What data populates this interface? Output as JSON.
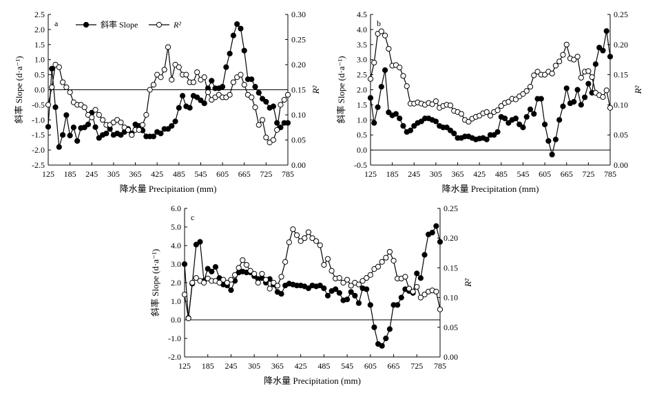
{
  "chart_data": [
    {
      "type": "line",
      "panel": "a",
      "xlabel": "降水量 Precipitation (mm)",
      "ylabel_left": "斜率 Slope (d·a⁻¹)",
      "ylabel_right": "R²",
      "xlim": [
        125,
        785
      ],
      "ylim_left": [
        -2.5,
        2.5
      ],
      "ylim_right": [
        0.0,
        0.3
      ],
      "xticks": [
        "125",
        "185",
        "245",
        "305",
        "365",
        "425",
        "485",
        "545",
        "605",
        "665",
        "725",
        "785"
      ],
      "yticks_left": [
        "-2.5",
        "-2.0",
        "-1.5",
        "-1.0",
        "-0.5",
        "0.0",
        "0.5",
        "1.0",
        "1.5",
        "2.0",
        "2.5"
      ],
      "yticks_right": [
        "0.00",
        "0.05",
        "0.10",
        "0.15",
        "0.20",
        "0.25",
        "0.30"
      ],
      "legend": {
        "placement": "top-left"
      },
      "series": [
        {
          "name": "斜率 Slope",
          "marker": "filled",
          "axis": "left",
          "x": [
            125,
            135,
            145,
            155,
            165,
            175,
            185,
            195,
            205,
            215,
            225,
            235,
            245,
            255,
            265,
            275,
            285,
            295,
            305,
            315,
            325,
            335,
            345,
            355,
            365,
            375,
            385,
            395,
            405,
            415,
            425,
            435,
            445,
            455,
            465,
            475,
            485,
            495,
            505,
            515,
            525,
            535,
            545,
            555,
            565,
            575,
            585,
            595,
            605,
            615,
            625,
            635,
            645,
            655,
            665,
            675,
            685,
            695,
            705,
            715,
            725,
            735,
            745,
            755,
            765,
            775,
            785
          ],
          "values": [
            -1.23,
            0.7,
            -0.58,
            -1.9,
            -1.5,
            -0.84,
            -1.52,
            -1.25,
            -1.7,
            -1.27,
            -1.25,
            -1.15,
            -0.76,
            -1.24,
            -1.6,
            -1.5,
            -1.45,
            -1.3,
            -1.5,
            -1.45,
            -1.5,
            -1.4,
            -1.3,
            -1.45,
            -1.15,
            -1.2,
            -1.35,
            -1.55,
            -1.55,
            -1.55,
            -1.4,
            -1.45,
            -1.3,
            -1.3,
            -1.2,
            -1.05,
            -0.6,
            -0.2,
            -0.55,
            -0.6,
            -0.2,
            -0.25,
            -0.35,
            -0.45,
            0.05,
            0.3,
            0.05,
            0.05,
            0.1,
            0.75,
            1.2,
            1.8,
            2.18,
            2.03,
            1.3,
            0.35,
            0.35,
            0.1,
            -0.1,
            -0.3,
            -0.4,
            -0.6,
            -0.55,
            -1.1,
            -1.25,
            -1.1,
            -1.1
          ]
        },
        {
          "name": "R²",
          "marker": "open",
          "axis": "right",
          "x": [
            125,
            135,
            145,
            155,
            165,
            175,
            185,
            195,
            205,
            215,
            225,
            235,
            245,
            255,
            265,
            275,
            285,
            295,
            305,
            315,
            325,
            335,
            345,
            355,
            365,
            375,
            385,
            395,
            405,
            415,
            425,
            435,
            445,
            455,
            465,
            475,
            485,
            495,
            505,
            515,
            525,
            535,
            545,
            555,
            565,
            575,
            585,
            595,
            605,
            615,
            625,
            635,
            645,
            655,
            665,
            675,
            685,
            695,
            705,
            715,
            725,
            735,
            745,
            755,
            765,
            775,
            785
          ],
          "values": [
            0.12,
            0.155,
            0.2,
            0.195,
            0.165,
            0.155,
            0.145,
            0.125,
            0.12,
            0.12,
            0.115,
            0.1,
            0.095,
            0.11,
            0.1,
            0.09,
            0.08,
            0.08,
            0.085,
            0.09,
            0.085,
            0.075,
            0.07,
            0.06,
            0.07,
            0.07,
            0.08,
            0.1,
            0.15,
            0.16,
            0.18,
            0.175,
            0.19,
            0.235,
            0.17,
            0.2,
            0.195,
            0.18,
            0.18,
            0.165,
            0.165,
            0.185,
            0.17,
            0.175,
            0.145,
            0.13,
            0.135,
            0.14,
            0.135,
            0.135,
            0.14,
            0.165,
            0.175,
            0.18,
            0.16,
            0.14,
            0.135,
            0.115,
            0.08,
            0.09,
            0.055,
            0.045,
            0.05,
            0.07,
            0.12,
            0.13,
            0.14
          ]
        }
      ]
    },
    {
      "type": "line",
      "panel": "b",
      "xlabel": "降水量 Precipitation (mm)",
      "ylabel_left": "斜率 Slope (d·a⁻¹)",
      "ylabel_right": "R²",
      "xlim": [
        125,
        785
      ],
      "ylim_left": [
        -0.5,
        4.5
      ],
      "ylim_right": [
        0.0,
        0.25
      ],
      "xticks": [
        "125",
        "185",
        "245",
        "305",
        "365",
        "425",
        "485",
        "545",
        "605",
        "665",
        "725",
        "785"
      ],
      "yticks_left": [
        "-0.5",
        "0.0",
        "0.5",
        "1.0",
        "1.5",
        "2.0",
        "2.5",
        "3.0",
        "3.5",
        "4.0",
        "4.5"
      ],
      "yticks_right": [
        "0.00",
        "0.05",
        "0.10",
        "0.15",
        "0.20",
        "0.25"
      ],
      "series": [
        {
          "name": "斜率 Slope",
          "marker": "filled",
          "axis": "left",
          "x": [
            125,
            135,
            145,
            155,
            165,
            175,
            185,
            195,
            205,
            215,
            225,
            235,
            245,
            255,
            265,
            275,
            285,
            295,
            305,
            315,
            325,
            335,
            345,
            355,
            365,
            375,
            385,
            395,
            405,
            415,
            425,
            435,
            445,
            455,
            465,
            475,
            485,
            495,
            505,
            515,
            525,
            535,
            545,
            555,
            565,
            575,
            585,
            595,
            605,
            615,
            625,
            635,
            645,
            655,
            665,
            675,
            685,
            695,
            705,
            715,
            725,
            735,
            745,
            755,
            765,
            775,
            785
          ],
          "values": [
            1.73,
            0.9,
            1.42,
            2.1,
            2.65,
            1.25,
            1.15,
            1.2,
            1.05,
            0.8,
            0.6,
            0.65,
            0.8,
            0.9,
            0.95,
            1.05,
            1.05,
            1.0,
            0.95,
            0.8,
            0.75,
            0.75,
            0.65,
            0.55,
            0.4,
            0.4,
            0.45,
            0.45,
            0.4,
            0.35,
            0.38,
            0.4,
            0.35,
            0.5,
            0.5,
            0.6,
            1.1,
            1.05,
            0.9,
            1.0,
            1.05,
            0.85,
            0.75,
            1.1,
            1.35,
            1.2,
            1.7,
            1.7,
            0.85,
            0.3,
            -0.15,
            0.35,
            1.0,
            1.45,
            2.05,
            1.55,
            1.6,
            2.0,
            1.5,
            1.75,
            2.2,
            1.9,
            2.85,
            3.4,
            3.3,
            3.95,
            3.1
          ]
        },
        {
          "name": "R²",
          "marker": "open",
          "axis": "right",
          "x": [
            125,
            135,
            145,
            155,
            165,
            175,
            185,
            195,
            205,
            215,
            225,
            235,
            245,
            255,
            265,
            275,
            285,
            295,
            305,
            315,
            325,
            335,
            345,
            355,
            365,
            375,
            385,
            395,
            405,
            415,
            425,
            435,
            445,
            455,
            465,
            475,
            485,
            495,
            505,
            515,
            525,
            535,
            545,
            555,
            565,
            575,
            585,
            595,
            605,
            615,
            625,
            635,
            645,
            655,
            665,
            675,
            685,
            695,
            705,
            715,
            725,
            735,
            745,
            755,
            765,
            775,
            785
          ],
          "values": [
            0.143,
            0.17,
            0.218,
            0.222,
            0.215,
            0.193,
            0.165,
            0.166,
            0.162,
            0.148,
            0.131,
            0.102,
            0.102,
            0.104,
            0.102,
            0.1,
            0.103,
            0.101,
            0.106,
            0.095,
            0.098,
            0.1,
            0.099,
            0.09,
            0.088,
            0.085,
            0.075,
            0.072,
            0.077,
            0.08,
            0.082,
            0.086,
            0.088,
            0.082,
            0.088,
            0.091,
            0.098,
            0.103,
            0.105,
            0.11,
            0.109,
            0.114,
            0.118,
            0.123,
            0.13,
            0.149,
            0.155,
            0.15,
            0.15,
            0.155,
            0.152,
            0.165,
            0.172,
            0.183,
            0.2,
            0.177,
            0.175,
            0.18,
            0.145,
            0.155,
            0.156,
            0.146,
            0.12,
            0.116,
            0.113,
            0.124,
            0.095
          ]
        }
      ]
    },
    {
      "type": "line",
      "panel": "c",
      "xlabel": "降水量 Precipitation (mm)",
      "ylabel_left": "斜率 Slope (d·a⁻¹)",
      "ylabel_right": "R²",
      "xlim": [
        125,
        785
      ],
      "ylim_left": [
        -2.0,
        6.0
      ],
      "ylim_right": [
        0.0,
        0.25
      ],
      "xticks": [
        "125",
        "185",
        "245",
        "305",
        "365",
        "425",
        "485",
        "545",
        "605",
        "665",
        "725",
        "785"
      ],
      "yticks_left": [
        "-2.0",
        "-1.0",
        "0.0",
        "1.0",
        "2.0",
        "3.0",
        "4.0",
        "5.0",
        "6.0"
      ],
      "yticks_right": [
        "0.00",
        "0.05",
        "0.10",
        "0.15",
        "0.20",
        "0.25"
      ],
      "series": [
        {
          "name": "斜率 Slope",
          "marker": "filled",
          "axis": "left",
          "x": [
            125,
            135,
            145,
            155,
            165,
            175,
            185,
            195,
            205,
            215,
            225,
            235,
            245,
            255,
            265,
            275,
            285,
            295,
            305,
            315,
            325,
            335,
            345,
            355,
            365,
            375,
            385,
            395,
            405,
            415,
            425,
            435,
            445,
            455,
            465,
            475,
            485,
            495,
            505,
            515,
            525,
            535,
            545,
            555,
            565,
            575,
            585,
            595,
            605,
            615,
            625,
            635,
            645,
            655,
            665,
            675,
            685,
            695,
            705,
            715,
            725,
            735,
            745,
            755,
            765,
            775,
            785
          ],
          "values": [
            3.0,
            0.1,
            1.95,
            4.05,
            4.2,
            2.1,
            2.75,
            2.6,
            2.85,
            2.25,
            1.9,
            1.85,
            1.6,
            2.1,
            2.55,
            2.6,
            2.55,
            2.55,
            2.35,
            2.2,
            2.25,
            2.0,
            2.2,
            1.9,
            1.5,
            1.4,
            1.85,
            1.95,
            1.9,
            1.85,
            1.85,
            1.8,
            1.7,
            1.85,
            1.8,
            1.85,
            1.7,
            1.3,
            1.55,
            1.65,
            1.45,
            1.05,
            1.1,
            1.5,
            1.3,
            0.9,
            1.7,
            1.65,
            0.8,
            -0.4,
            -1.3,
            -1.4,
            -1.0,
            -0.5,
            0.8,
            0.8,
            1.2,
            1.65,
            1.55,
            1.45,
            2.5,
            2.25,
            3.5,
            4.6,
            4.7,
            5.05,
            4.2
          ]
        },
        {
          "name": "R²",
          "marker": "open",
          "axis": "right",
          "x": [
            125,
            135,
            145,
            155,
            165,
            175,
            185,
            195,
            205,
            215,
            225,
            235,
            245,
            255,
            265,
            275,
            285,
            295,
            305,
            315,
            325,
            335,
            345,
            355,
            365,
            375,
            385,
            395,
            405,
            415,
            425,
            435,
            445,
            455,
            465,
            475,
            485,
            495,
            505,
            515,
            525,
            535,
            545,
            555,
            565,
            575,
            585,
            595,
            605,
            615,
            625,
            635,
            645,
            655,
            665,
            675,
            685,
            695,
            705,
            715,
            725,
            735,
            745,
            755,
            765,
            775,
            785
          ],
          "values": [
            0.105,
            0.065,
            0.125,
            0.133,
            0.128,
            0.125,
            0.132,
            0.128,
            0.128,
            0.125,
            0.13,
            0.125,
            0.13,
            0.138,
            0.15,
            0.163,
            0.155,
            0.145,
            0.14,
            0.125,
            0.14,
            0.13,
            0.115,
            0.125,
            0.12,
            0.135,
            0.16,
            0.193,
            0.215,
            0.205,
            0.195,
            0.2,
            0.21,
            0.2,
            0.195,
            0.188,
            0.155,
            0.165,
            0.145,
            0.132,
            0.133,
            0.125,
            0.13,
            0.12,
            0.125,
            0.122,
            0.128,
            0.133,
            0.138,
            0.148,
            0.152,
            0.16,
            0.167,
            0.177,
            0.162,
            0.132,
            0.132,
            0.135,
            0.115,
            0.11,
            0.118,
            0.1,
            0.105,
            0.11,
            0.112,
            0.11,
            0.08
          ]
        }
      ]
    }
  ]
}
